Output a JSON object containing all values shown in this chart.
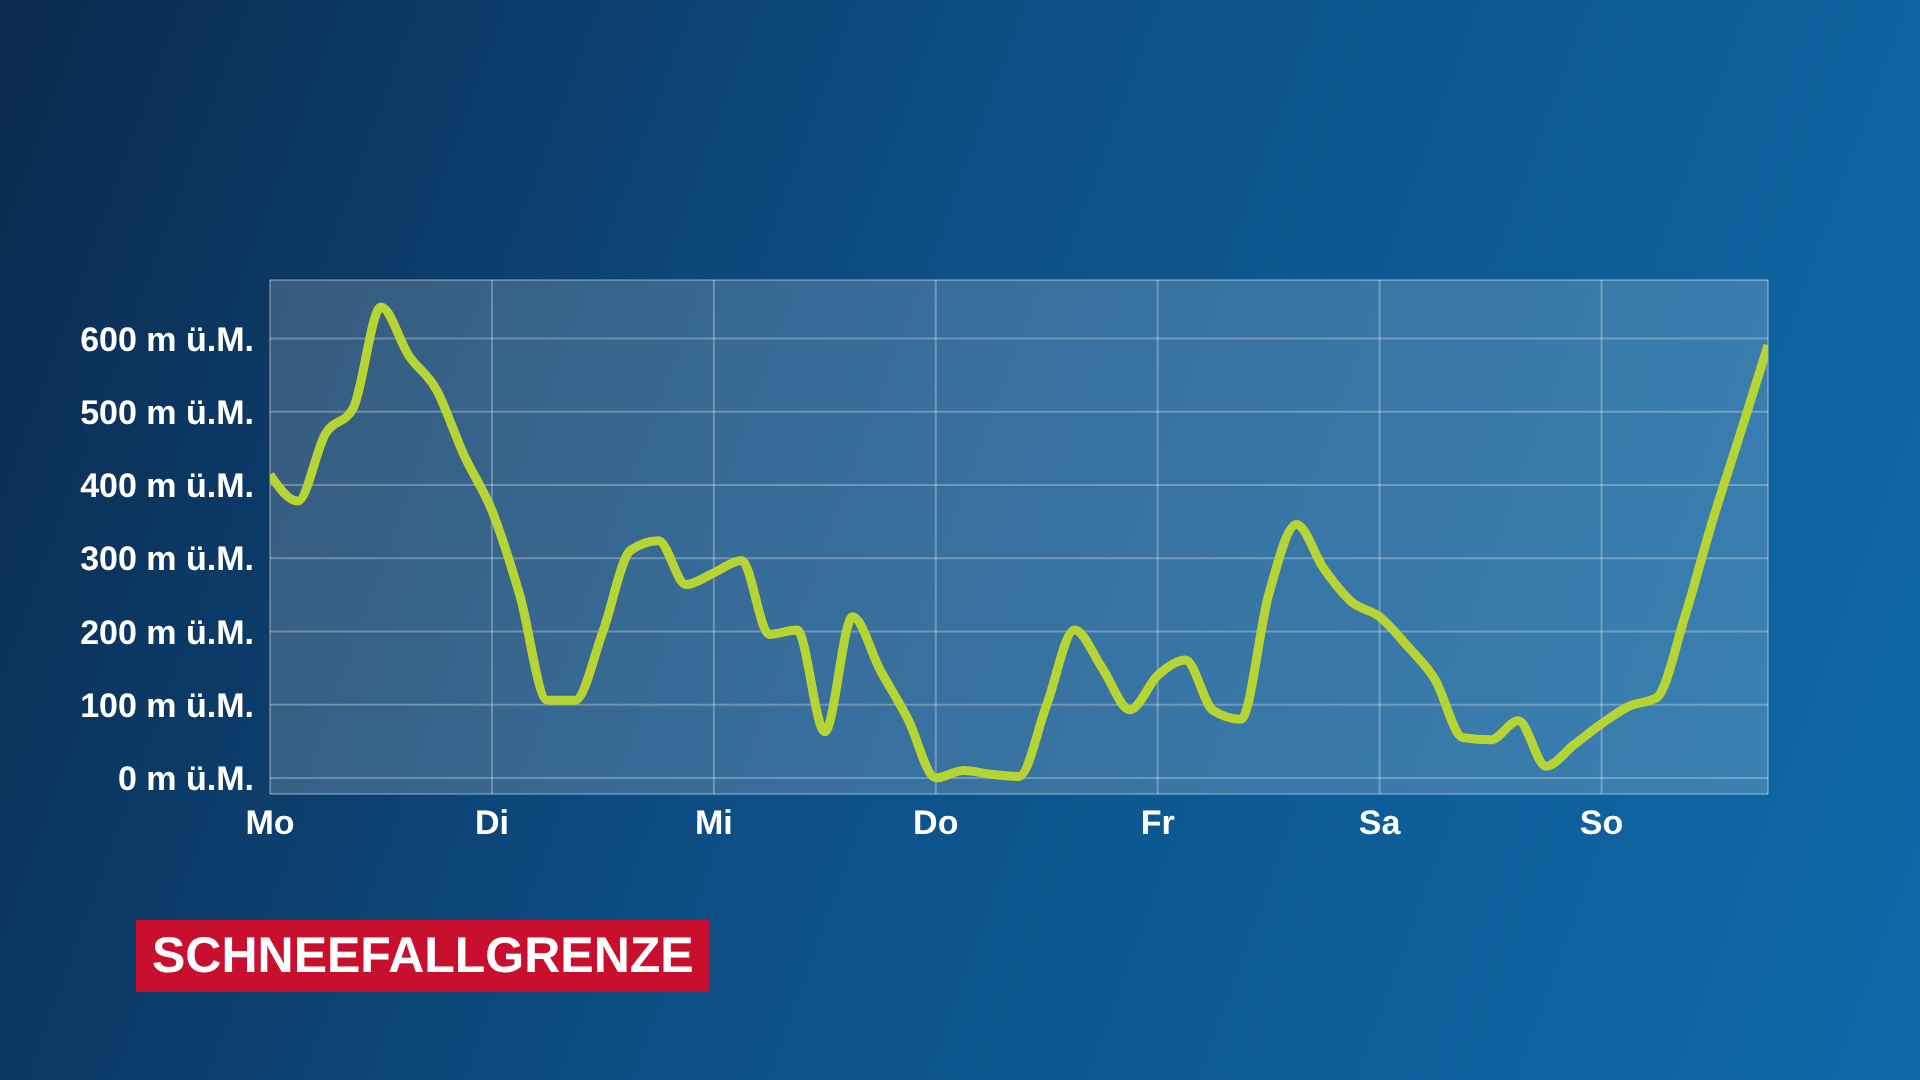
{
  "chart_data": {
    "type": "line",
    "title": "SCHNEEFALLGRENZE",
    "categories": [
      "Mo",
      null,
      null,
      null,
      null,
      null,
      null,
      null,
      "Di",
      null,
      null,
      null,
      null,
      null,
      null,
      null,
      "Mi",
      null,
      null,
      null,
      null,
      null,
      null,
      null,
      "Do",
      null,
      null,
      null,
      null,
      null,
      null,
      null,
      "Fr",
      null,
      null,
      null,
      null,
      null,
      null,
      null,
      "Sa",
      null,
      null,
      null,
      null,
      null,
      null,
      null,
      "So",
      null,
      null,
      null,
      null,
      null,
      null
    ],
    "series": [
      {
        "color": "#b6d433",
        "values": [
          414,
          378,
          470,
          505,
          643,
          577,
          530,
          440,
          365,
          250,
          106,
          106,
          200,
          311,
          324,
          264,
          280,
          297,
          196,
          202,
          63,
          220,
          147,
          80,
          0,
          10,
          5,
          2,
          100,
          202,
          150,
          93,
          140,
          161,
          92,
          80,
          250,
          346,
          285,
          240,
          220,
          180,
          134,
          55,
          52,
          78,
          16,
          45,
          74,
          98,
          110,
          220,
          351,
          470,
          591
        ]
      }
    ],
    "ylim": [
      -22,
      680
    ],
    "yticks": [
      {
        "value": 0,
        "label": "0 m ü.M."
      },
      {
        "value": 100,
        "label": "100 m ü.M."
      },
      {
        "value": 200,
        "label": "200 m ü.M."
      },
      {
        "value": 300,
        "label": "300 m ü.M."
      },
      {
        "value": 400,
        "label": "400 m ü.M."
      },
      {
        "value": 500,
        "label": "500 m ü.M."
      },
      {
        "value": 600,
        "label": "600 m ü.M."
      }
    ],
    "grid": true,
    "line_style": "solid",
    "marker": "none"
  }
}
